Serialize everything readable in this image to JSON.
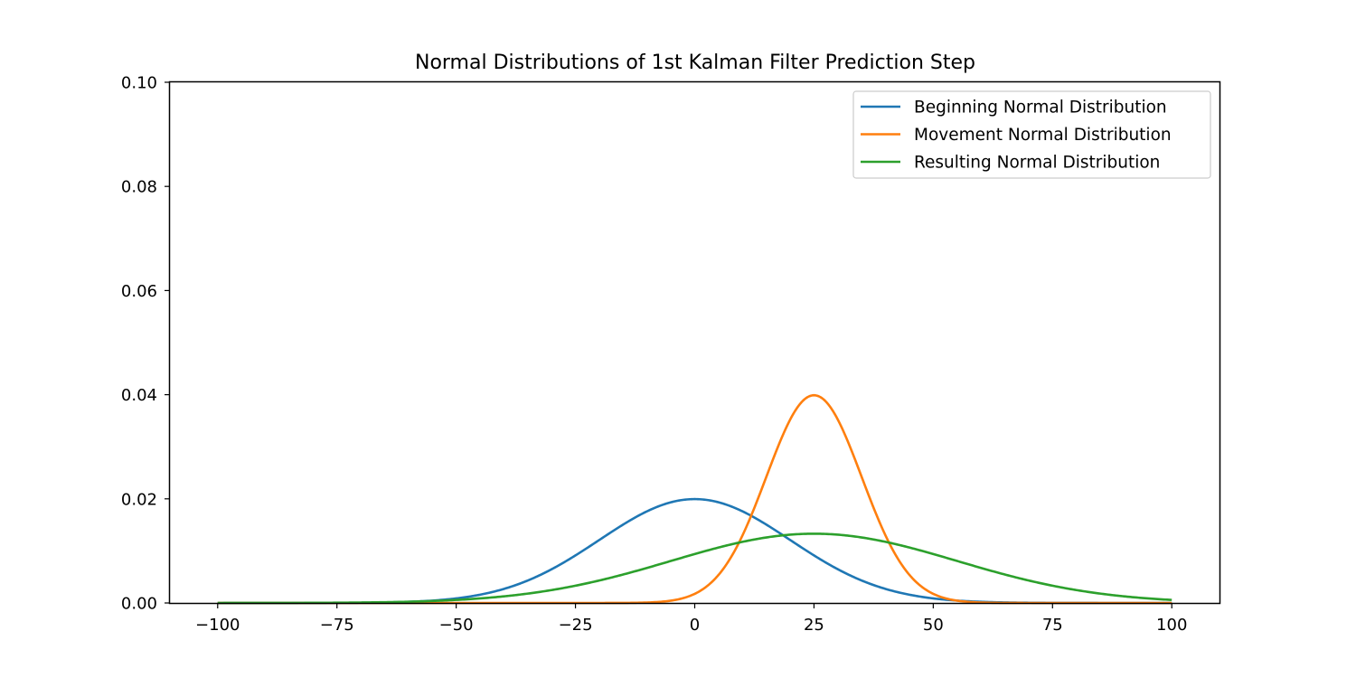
{
  "chart_data": {
    "type": "line",
    "title": "Normal Distributions of 1st Kalman Filter Prediction Step",
    "xlabel": "",
    "ylabel": "",
    "xlim": [
      -110,
      110
    ],
    "ylim": [
      0,
      0.1
    ],
    "xticks": [
      -100,
      -75,
      -50,
      -25,
      0,
      25,
      50,
      75,
      100
    ],
    "xtick_labels": [
      "−100",
      "−75",
      "−50",
      "−25",
      "0",
      "25",
      "50",
      "75",
      "100"
    ],
    "yticks": [
      0,
      0.02,
      0.04,
      0.06,
      0.08,
      0.1
    ],
    "ytick_labels": [
      "0.00",
      "0.02",
      "0.04",
      "0.06",
      "0.08",
      "0.10"
    ],
    "grid": false,
    "legend_position": "top-right",
    "x_range": [
      -100,
      100
    ],
    "series": [
      {
        "name": "Beginning Normal Distribution",
        "color": "#1f77b4",
        "distribution": "normal",
        "mean": 0,
        "std": 20
      },
      {
        "name": "Movement Normal Distribution",
        "color": "#ff7f0e",
        "distribution": "normal",
        "mean": 25,
        "std": 10
      },
      {
        "name": "Resulting Normal Distribution",
        "color": "#2ca02c",
        "distribution": "normal",
        "mean": 25,
        "std": 30
      }
    ]
  }
}
